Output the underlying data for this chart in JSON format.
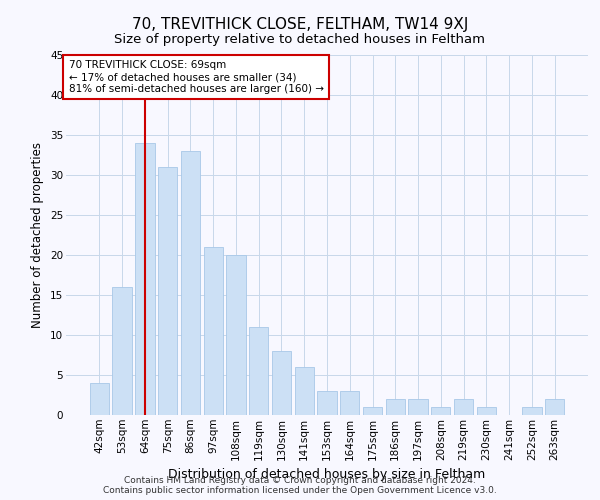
{
  "title": "70, TREVITHICK CLOSE, FELTHAM, TW14 9XJ",
  "subtitle": "Size of property relative to detached houses in Feltham",
  "xlabel": "Distribution of detached houses by size in Feltham",
  "ylabel": "Number of detached properties",
  "categories": [
    "42sqm",
    "53sqm",
    "64sqm",
    "75sqm",
    "86sqm",
    "97sqm",
    "108sqm",
    "119sqm",
    "130sqm",
    "141sqm",
    "153sqm",
    "164sqm",
    "175sqm",
    "186sqm",
    "197sqm",
    "208sqm",
    "219sqm",
    "230sqm",
    "241sqm",
    "252sqm",
    "263sqm"
  ],
  "values": [
    4,
    16,
    34,
    31,
    33,
    21,
    20,
    11,
    8,
    6,
    3,
    3,
    1,
    2,
    2,
    1,
    2,
    1,
    0,
    1,
    2
  ],
  "bar_color": "#cce0f5",
  "bar_edge_color": "#a8c8e8",
  "vline_x": 2,
  "vline_color": "#cc0000",
  "annotation_line1": "70 TREVITHICK CLOSE: 69sqm",
  "annotation_line2": "← 17% of detached houses are smaller (34)",
  "annotation_line3": "81% of semi-detached houses are larger (160) →",
  "annotation_box_color": "#ffffff",
  "annotation_box_edge": "#cc0000",
  "ylim": [
    0,
    45
  ],
  "yticks": [
    0,
    5,
    10,
    15,
    20,
    25,
    30,
    35,
    40,
    45
  ],
  "grid_color": "#c8d8ea",
  "footer1": "Contains HM Land Registry data © Crown copyright and database right 2024.",
  "footer2": "Contains public sector information licensed under the Open Government Licence v3.0.",
  "fig_bg": "#f8f8ff",
  "title_fontsize": 11,
  "subtitle_fontsize": 9.5,
  "xlabel_fontsize": 9,
  "ylabel_fontsize": 8.5,
  "tick_fontsize": 7.5,
  "annot_fontsize": 7.5,
  "footer_fontsize": 6.5
}
